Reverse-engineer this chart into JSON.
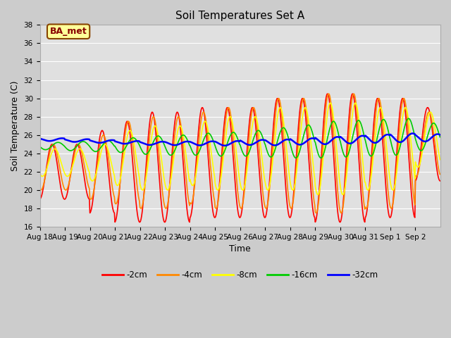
{
  "title": "Soil Temperatures Set A",
  "xlabel": "Time",
  "ylabel": "Soil Temperature (C)",
  "ylim": [
    16,
    38
  ],
  "yticks": [
    16,
    18,
    20,
    22,
    24,
    26,
    28,
    30,
    32,
    34,
    36,
    38
  ],
  "xtick_labels": [
    "Aug 18",
    "Aug 19",
    "Aug 20",
    "Aug 21",
    "Aug 22",
    "Aug 23",
    "Aug 24",
    "Aug 25",
    "Aug 26",
    "Aug 27",
    "Aug 28",
    "Aug 29",
    "Aug 30",
    "Aug 31",
    "Sep 1",
    "Sep 2"
  ],
  "legend_labels": [
    "-2cm",
    "-4cm",
    "-8cm",
    "-16cm",
    "-32cm"
  ],
  "legend_colors": [
    "#ff0000",
    "#ff8800",
    "#ffff00",
    "#00cc00",
    "#0000ff"
  ],
  "line_widths": [
    1.2,
    1.2,
    1.2,
    1.2,
    1.8
  ],
  "annotation_text": "BA_met",
  "annotation_color": "#880000",
  "annotation_bg": "#ffff99",
  "annotation_border": "#884400",
  "title_fontsize": 11,
  "axis_fontsize": 9,
  "tick_fontsize": 7.5,
  "n_days": 16,
  "ppd": 48,
  "mean_2cm": [
    22,
    22,
    22,
    22,
    22.5,
    22.5,
    23,
    23,
    23,
    23.5,
    23.5,
    23.5,
    23.5,
    23.5,
    23.5,
    25
  ],
  "amp_2cm": [
    3,
    3,
    4.5,
    5.5,
    6,
    6,
    6,
    6,
    6,
    6.5,
    6.5,
    7,
    7,
    6.5,
    6.5,
    4
  ],
  "mean_4cm": [
    22.5,
    22.5,
    22.5,
    23,
    23,
    23,
    23.5,
    23.5,
    23.5,
    24,
    24,
    24,
    24,
    24,
    24,
    25
  ],
  "amp_4cm": [
    2.5,
    2.5,
    3.5,
    4.5,
    5,
    5,
    5,
    5.5,
    5.5,
    6,
    6,
    6.5,
    6.5,
    6,
    6,
    3.5
  ],
  "mean_8cm": [
    23,
    23,
    23,
    23.5,
    23.5,
    23.5,
    24,
    24,
    24,
    24.5,
    24.5,
    24.5,
    24.5,
    24.5,
    24.5,
    25.5
  ],
  "amp_8cm": [
    1.5,
    1.5,
    2,
    3,
    3.5,
    3.5,
    3.5,
    4,
    4,
    4.5,
    4.5,
    5,
    5,
    4.5,
    4.5,
    3
  ],
  "mean_16cm": [
    24.8,
    24.8,
    24.8,
    24.9,
    24.9,
    24.9,
    25.0,
    25.0,
    25.1,
    25.2,
    25.3,
    25.5,
    25.6,
    25.7,
    25.8,
    25.8
  ],
  "amp_16cm": [
    0.4,
    0.5,
    0.6,
    0.8,
    1.0,
    1.1,
    1.2,
    1.3,
    1.4,
    1.6,
    1.8,
    2.0,
    2.0,
    2.0,
    2.0,
    1.5
  ],
  "mean_32cm": [
    25.5,
    25.4,
    25.3,
    25.2,
    25.1,
    25.1,
    25.1,
    25.1,
    25.2,
    25.2,
    25.3,
    25.4,
    25.5,
    25.6,
    25.7,
    25.7
  ],
  "amp_32cm": [
    0.15,
    0.15,
    0.15,
    0.15,
    0.18,
    0.2,
    0.22,
    0.25,
    0.28,
    0.32,
    0.35,
    0.4,
    0.42,
    0.45,
    0.48,
    0.4
  ],
  "phase_2cm": -1.5,
  "phase_4cm": -1.8,
  "phase_8cm": -2.2,
  "phase_16cm": -3.0,
  "phase_32cm": -4.0
}
